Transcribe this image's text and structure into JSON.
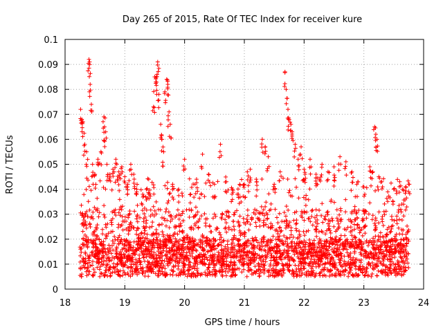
{
  "chart_data": {
    "type": "scatter",
    "title": "Day 265 of 2015, Rate Of TEC Index for receiver kure",
    "xlabel": "GPS time / hours",
    "ylabel": "ROTI / TECUs",
    "xlim": [
      18,
      24
    ],
    "ylim": [
      0,
      0.1
    ],
    "xticks": [
      18,
      19,
      20,
      21,
      22,
      23,
      24
    ],
    "yticks": [
      0,
      0.01,
      0.02,
      0.03,
      0.04,
      0.05,
      0.06,
      0.07,
      0.08,
      0.09,
      0.1
    ],
    "ytick_labels": [
      "0",
      "0.01",
      "0.02",
      "0.03",
      "0.04",
      "0.05",
      "0.06",
      "0.07",
      "0.08",
      "0.09",
      "0.1"
    ],
    "grid": true,
    "marker": "+",
    "series_color": "#ff0000",
    "series": [
      {
        "name": "ROTI",
        "points": [
          [
            18.26,
            0.072
          ],
          [
            18.28,
            0.068
          ],
          [
            18.3,
            0.067
          ],
          [
            18.33,
            0.058
          ],
          [
            18.36,
            0.055
          ],
          [
            18.4,
            0.092
          ],
          [
            18.41,
            0.091
          ],
          [
            18.42,
            0.082
          ],
          [
            18.44,
            0.074
          ],
          [
            18.46,
            0.05
          ],
          [
            18.5,
            0.046
          ],
          [
            18.55,
            0.052
          ],
          [
            18.6,
            0.055
          ],
          [
            18.65,
            0.069
          ],
          [
            18.66,
            0.065
          ],
          [
            18.68,
            0.063
          ],
          [
            18.7,
            0.05
          ],
          [
            18.75,
            0.046
          ],
          [
            18.8,
            0.048
          ],
          [
            18.85,
            0.052
          ],
          [
            18.9,
            0.047
          ],
          [
            18.95,
            0.049
          ],
          [
            19.0,
            0.045
          ],
          [
            19.05,
            0.042
          ],
          [
            19.1,
            0.05
          ],
          [
            19.15,
            0.046
          ],
          [
            19.2,
            0.04
          ],
          [
            19.3,
            0.038
          ],
          [
            19.4,
            0.044
          ],
          [
            19.48,
            0.073
          ],
          [
            19.5,
            0.085
          ],
          [
            19.52,
            0.083
          ],
          [
            19.54,
            0.086
          ],
          [
            19.55,
            0.091
          ],
          [
            19.57,
            0.078
          ],
          [
            19.6,
            0.066
          ],
          [
            19.62,
            0.06
          ],
          [
            19.65,
            0.055
          ],
          [
            19.67,
            0.079
          ],
          [
            19.7,
            0.084
          ],
          [
            19.72,
            0.082
          ],
          [
            19.74,
            0.071
          ],
          [
            19.76,
            0.066
          ],
          [
            19.8,
            0.042
          ],
          [
            19.9,
            0.04
          ],
          [
            20.0,
            0.052
          ],
          [
            20.1,
            0.038
          ],
          [
            20.2,
            0.044
          ],
          [
            20.3,
            0.054
          ],
          [
            20.4,
            0.046
          ],
          [
            20.5,
            0.042
          ],
          [
            20.6,
            0.058
          ],
          [
            20.7,
            0.043
          ],
          [
            20.8,
            0.04
          ],
          [
            20.9,
            0.038
          ],
          [
            21.0,
            0.042
          ],
          [
            21.05,
            0.047
          ],
          [
            21.1,
            0.048
          ],
          [
            21.2,
            0.044
          ],
          [
            21.3,
            0.06
          ],
          [
            21.35,
            0.057
          ],
          [
            21.4,
            0.053
          ],
          [
            21.5,
            0.042
          ],
          [
            21.6,
            0.047
          ],
          [
            21.68,
            0.087
          ],
          [
            21.7,
            0.08
          ],
          [
            21.73,
            0.072
          ],
          [
            21.75,
            0.068
          ],
          [
            21.78,
            0.066
          ],
          [
            21.8,
            0.063
          ],
          [
            21.85,
            0.058
          ],
          [
            21.9,
            0.052
          ],
          [
            21.95,
            0.057
          ],
          [
            22.0,
            0.048
          ],
          [
            22.1,
            0.052
          ],
          [
            22.2,
            0.046
          ],
          [
            22.3,
            0.05
          ],
          [
            22.4,
            0.047
          ],
          [
            22.5,
            0.049
          ],
          [
            22.6,
            0.053
          ],
          [
            22.7,
            0.051
          ],
          [
            22.8,
            0.047
          ],
          [
            22.9,
            0.043
          ],
          [
            23.0,
            0.041
          ],
          [
            23.1,
            0.049
          ],
          [
            23.15,
            0.047
          ],
          [
            23.18,
            0.065
          ],
          [
            23.2,
            0.062
          ],
          [
            23.22,
            0.06
          ],
          [
            23.25,
            0.045
          ],
          [
            23.3,
            0.043
          ],
          [
            23.4,
            0.039
          ],
          [
            23.5,
            0.04
          ],
          [
            23.6,
            0.043
          ],
          [
            23.65,
            0.04
          ],
          [
            23.7,
            0.041
          ],
          [
            23.75,
            0.042
          ]
        ]
      }
    ],
    "background_band": {
      "x_range": [
        18.25,
        23.75
      ],
      "y_typical": 0.012,
      "y_spread_to": 0.045,
      "points_per_hour": 540
    }
  }
}
